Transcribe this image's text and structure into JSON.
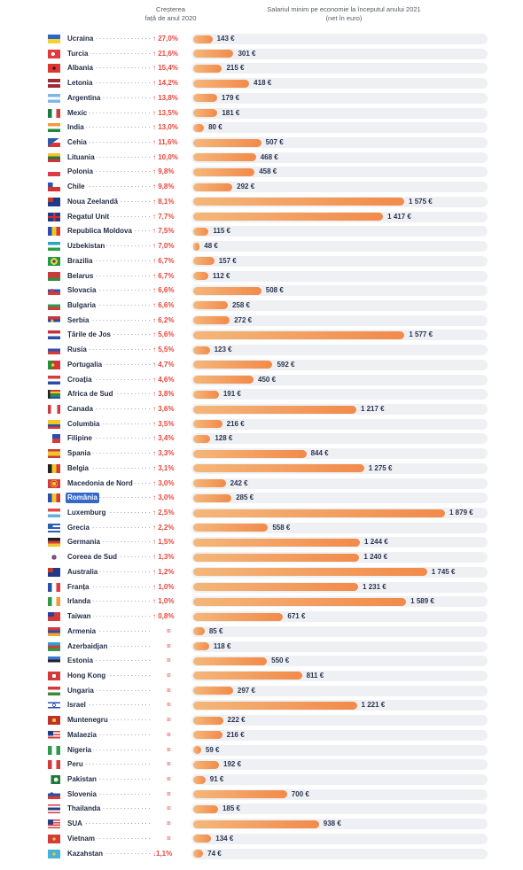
{
  "header": {
    "growth_line1": "Creșterea",
    "growth_line2": "față de anul 2020",
    "salary_line1": "Salariul minim pe economie la începutul anului 2021",
    "salary_line2": "(net în euro)"
  },
  "highlight_color": "#3569c9",
  "bar_color": "#f28a4a",
  "chart_data": {
    "type": "bar",
    "orientation": "horizontal",
    "unit": "€",
    "xlim": [
      0,
      1879
    ],
    "rows": [
      {
        "country": "Ucraina",
        "flag": "ukraine-flag",
        "growth": "↑ 27,0%",
        "dir": "up",
        "value": 143,
        "label": "143 €"
      },
      {
        "country": "Turcia",
        "flag": "turkey-flag",
        "growth": "↑ 21,6%",
        "dir": "up",
        "value": 301,
        "label": "301 €"
      },
      {
        "country": "Albania",
        "flag": "albania-flag",
        "growth": "↑ 15,4%",
        "dir": "up",
        "value": 215,
        "label": "215 €"
      },
      {
        "country": "Letonia",
        "flag": "latvia-flag",
        "growth": "↑ 14,2%",
        "dir": "up",
        "value": 418,
        "label": "418 €"
      },
      {
        "country": "Argentina",
        "flag": "argentina-flag",
        "growth": "↑ 13,8%",
        "dir": "up",
        "value": 179,
        "label": "179 €"
      },
      {
        "country": "Mexic",
        "flag": "mexico-flag",
        "growth": "↑ 13,5%",
        "dir": "up",
        "value": 181,
        "label": "181 €"
      },
      {
        "country": "India",
        "flag": "india-flag",
        "growth": "↑ 13,0%",
        "dir": "up",
        "value": 80,
        "label": "80 €"
      },
      {
        "country": "Cehia",
        "flag": "czechia-flag",
        "growth": "↑ 11,6%",
        "dir": "up",
        "value": 507,
        "label": "507 €"
      },
      {
        "country": "Lituania",
        "flag": "lithuania-flag",
        "growth": "↑ 10,0%",
        "dir": "up",
        "value": 468,
        "label": "468 €"
      },
      {
        "country": "Polonia",
        "flag": "poland-flag",
        "growth": "↑ 9,8%",
        "dir": "up",
        "value": 458,
        "label": "458 €"
      },
      {
        "country": "Chile",
        "flag": "chile-flag",
        "growth": "↑ 9,8%",
        "dir": "up",
        "value": 292,
        "label": "292 €"
      },
      {
        "country": "Noua Zeelandă",
        "flag": "new-zealand-flag",
        "growth": "↑ 8,1%",
        "dir": "up",
        "value": 1575,
        "label": "1 575 €"
      },
      {
        "country": "Regatul Unit",
        "flag": "united-kingdom-flag",
        "growth": "↑ 7,7%",
        "dir": "up",
        "value": 1417,
        "label": "1 417 €"
      },
      {
        "country": "Republica Moldova",
        "flag": "moldova-flag",
        "growth": "↑ 7,5%",
        "dir": "up",
        "value": 115,
        "label": "115 €"
      },
      {
        "country": "Uzbekistan",
        "flag": "uzbekistan-flag",
        "growth": "↑ 7,0%",
        "dir": "up",
        "value": 48,
        "label": "48 €"
      },
      {
        "country": "Brazilia",
        "flag": "brazil-flag",
        "growth": "↑ 6,7%",
        "dir": "up",
        "value": 157,
        "label": "157 €"
      },
      {
        "country": "Belarus",
        "flag": "belarus-flag",
        "growth": "↑ 6,7%",
        "dir": "up",
        "value": 112,
        "label": "112 €"
      },
      {
        "country": "Slovacia",
        "flag": "slovakia-flag",
        "growth": "↑ 6,6%",
        "dir": "up",
        "value": 508,
        "label": "508 €"
      },
      {
        "country": "Bulgaria",
        "flag": "bulgaria-flag",
        "growth": "↑ 6,6%",
        "dir": "up",
        "value": 258,
        "label": "258 €"
      },
      {
        "country": "Serbia",
        "flag": "serbia-flag",
        "growth": "↑ 6,2%",
        "dir": "up",
        "value": 272,
        "label": "272 €"
      },
      {
        "country": "Țările de Jos",
        "flag": "netherlands-flag",
        "growth": "↑ 5,6%",
        "dir": "up",
        "value": 1577,
        "label": "1 577 €"
      },
      {
        "country": "Rusia",
        "flag": "russia-flag",
        "growth": "↑ 5,5%",
        "dir": "up",
        "value": 123,
        "label": "123 €"
      },
      {
        "country": "Portugalia",
        "flag": "portugal-flag",
        "growth": "↑ 4,7%",
        "dir": "up",
        "value": 592,
        "label": "592 €"
      },
      {
        "country": "Croația",
        "flag": "croatia-flag",
        "growth": "↑ 4,6%",
        "dir": "up",
        "value": 450,
        "label": "450 €"
      },
      {
        "country": "Africa de Sud",
        "flag": "south-africa-flag",
        "growth": "↑ 3,8%",
        "dir": "up",
        "value": 191,
        "label": "191 €"
      },
      {
        "country": "Canada",
        "flag": "canada-flag",
        "growth": "↑ 3,6%",
        "dir": "up",
        "value": 1217,
        "label": "1 217 €"
      },
      {
        "country": "Columbia",
        "flag": "colombia-flag",
        "growth": "↑ 3,5%",
        "dir": "up",
        "value": 216,
        "label": "216 €"
      },
      {
        "country": "Filipine",
        "flag": "philippines-flag",
        "growth": "↑ 3,4%",
        "dir": "up",
        "value": 128,
        "label": "128 €"
      },
      {
        "country": "Spania",
        "flag": "spain-flag",
        "growth": "↑ 3,3%",
        "dir": "up",
        "value": 844,
        "label": "844 €"
      },
      {
        "country": "Belgia",
        "flag": "belgium-flag",
        "growth": "↑ 3,1%",
        "dir": "up",
        "value": 1275,
        "label": "1 275 €"
      },
      {
        "country": "Macedonia de Nord",
        "flag": "north-macedonia-flag",
        "growth": "↑ 3,0%",
        "dir": "up",
        "value": 242,
        "label": "242 €"
      },
      {
        "country": "România",
        "flag": "romania-flag",
        "growth": "↑ 3,0%",
        "dir": "up",
        "value": 285,
        "label": "285 €",
        "highlight": true
      },
      {
        "country": "Luxemburg",
        "flag": "luxembourg-flag",
        "growth": "↑ 2,5%",
        "dir": "up",
        "value": 1879,
        "label": "1 879 €"
      },
      {
        "country": "Grecia",
        "flag": "greece-flag",
        "growth": "↑ 2,2%",
        "dir": "up",
        "value": 558,
        "label": "558 €"
      },
      {
        "country": "Germania",
        "flag": "germany-flag",
        "growth": "↑ 1,5%",
        "dir": "up",
        "value": 1244,
        "label": "1 244 €"
      },
      {
        "country": "Coreea de Sud",
        "flag": "south-korea-flag",
        "growth": "↑ 1,3%",
        "dir": "up",
        "value": 1240,
        "label": "1 240 €"
      },
      {
        "country": "Australia",
        "flag": "australia-flag",
        "growth": "↑ 1,2%",
        "dir": "up",
        "value": 1745,
        "label": "1 745 €"
      },
      {
        "country": "Franța",
        "flag": "france-flag",
        "growth": "↑ 1,0%",
        "dir": "up",
        "value": 1231,
        "label": "1 231 €"
      },
      {
        "country": "Irlanda",
        "flag": "ireland-flag",
        "growth": "↑ 1,0%",
        "dir": "up",
        "value": 1589,
        "label": "1 589 €"
      },
      {
        "country": "Taiwan",
        "flag": "taiwan-flag",
        "growth": "↑ 0,8%",
        "dir": "up",
        "value": 671,
        "label": "671 €"
      },
      {
        "country": "Armenia",
        "flag": "armenia-flag",
        "growth": "=",
        "dir": "eq",
        "value": 85,
        "label": "85 €"
      },
      {
        "country": "Azerbaidjan",
        "flag": "azerbaijan-flag",
        "growth": "=",
        "dir": "eq",
        "value": 118,
        "label": "118 €"
      },
      {
        "country": "Estonia",
        "flag": "estonia-flag",
        "growth": "=",
        "dir": "eq",
        "value": 550,
        "label": "550 €"
      },
      {
        "country": "Hong Kong",
        "flag": "hong-kong-flag",
        "growth": "=",
        "dir": "eq",
        "value": 811,
        "label": "811 €"
      },
      {
        "country": "Ungaria",
        "flag": "hungary-flag",
        "growth": "=",
        "dir": "eq",
        "value": 297,
        "label": "297 €"
      },
      {
        "country": "Israel",
        "flag": "israel-flag",
        "growth": "=",
        "dir": "eq",
        "value": 1221,
        "label": "1 221 €"
      },
      {
        "country": "Muntenegru",
        "flag": "montenegro-flag",
        "growth": "=",
        "dir": "eq",
        "value": 222,
        "label": "222 €"
      },
      {
        "country": "Malaezia",
        "flag": "malaysia-flag",
        "growth": "=",
        "dir": "eq",
        "value": 216,
        "label": "216 €"
      },
      {
        "country": "Nigeria",
        "flag": "nigeria-flag",
        "growth": "=",
        "dir": "eq",
        "value": 59,
        "label": "59 €"
      },
      {
        "country": "Peru",
        "flag": "peru-flag",
        "growth": "=",
        "dir": "eq",
        "value": 192,
        "label": "192 €"
      },
      {
        "country": "Pakistan",
        "flag": "pakistan-flag",
        "growth": "=",
        "dir": "eq",
        "value": 91,
        "label": "91 €"
      },
      {
        "country": "Slovenia",
        "flag": "slovenia-flag",
        "growth": "=",
        "dir": "eq",
        "value": 700,
        "label": "700 €"
      },
      {
        "country": "Thailanda",
        "flag": "thailand-flag",
        "growth": "=",
        "dir": "eq",
        "value": 185,
        "label": "185 €"
      },
      {
        "country": "SUA",
        "flag": "usa-flag",
        "growth": "=",
        "dir": "eq",
        "value": 938,
        "label": "938 €"
      },
      {
        "country": "Vietnam",
        "flag": "vietnam-flag",
        "growth": "=",
        "dir": "eq",
        "value": 134,
        "label": "134 €"
      },
      {
        "country": "Kazahstan",
        "flag": "kazakhstan-flag",
        "growth": "↓1,1%",
        "dir": "down",
        "value": 74,
        "label": "74 €"
      }
    ]
  }
}
